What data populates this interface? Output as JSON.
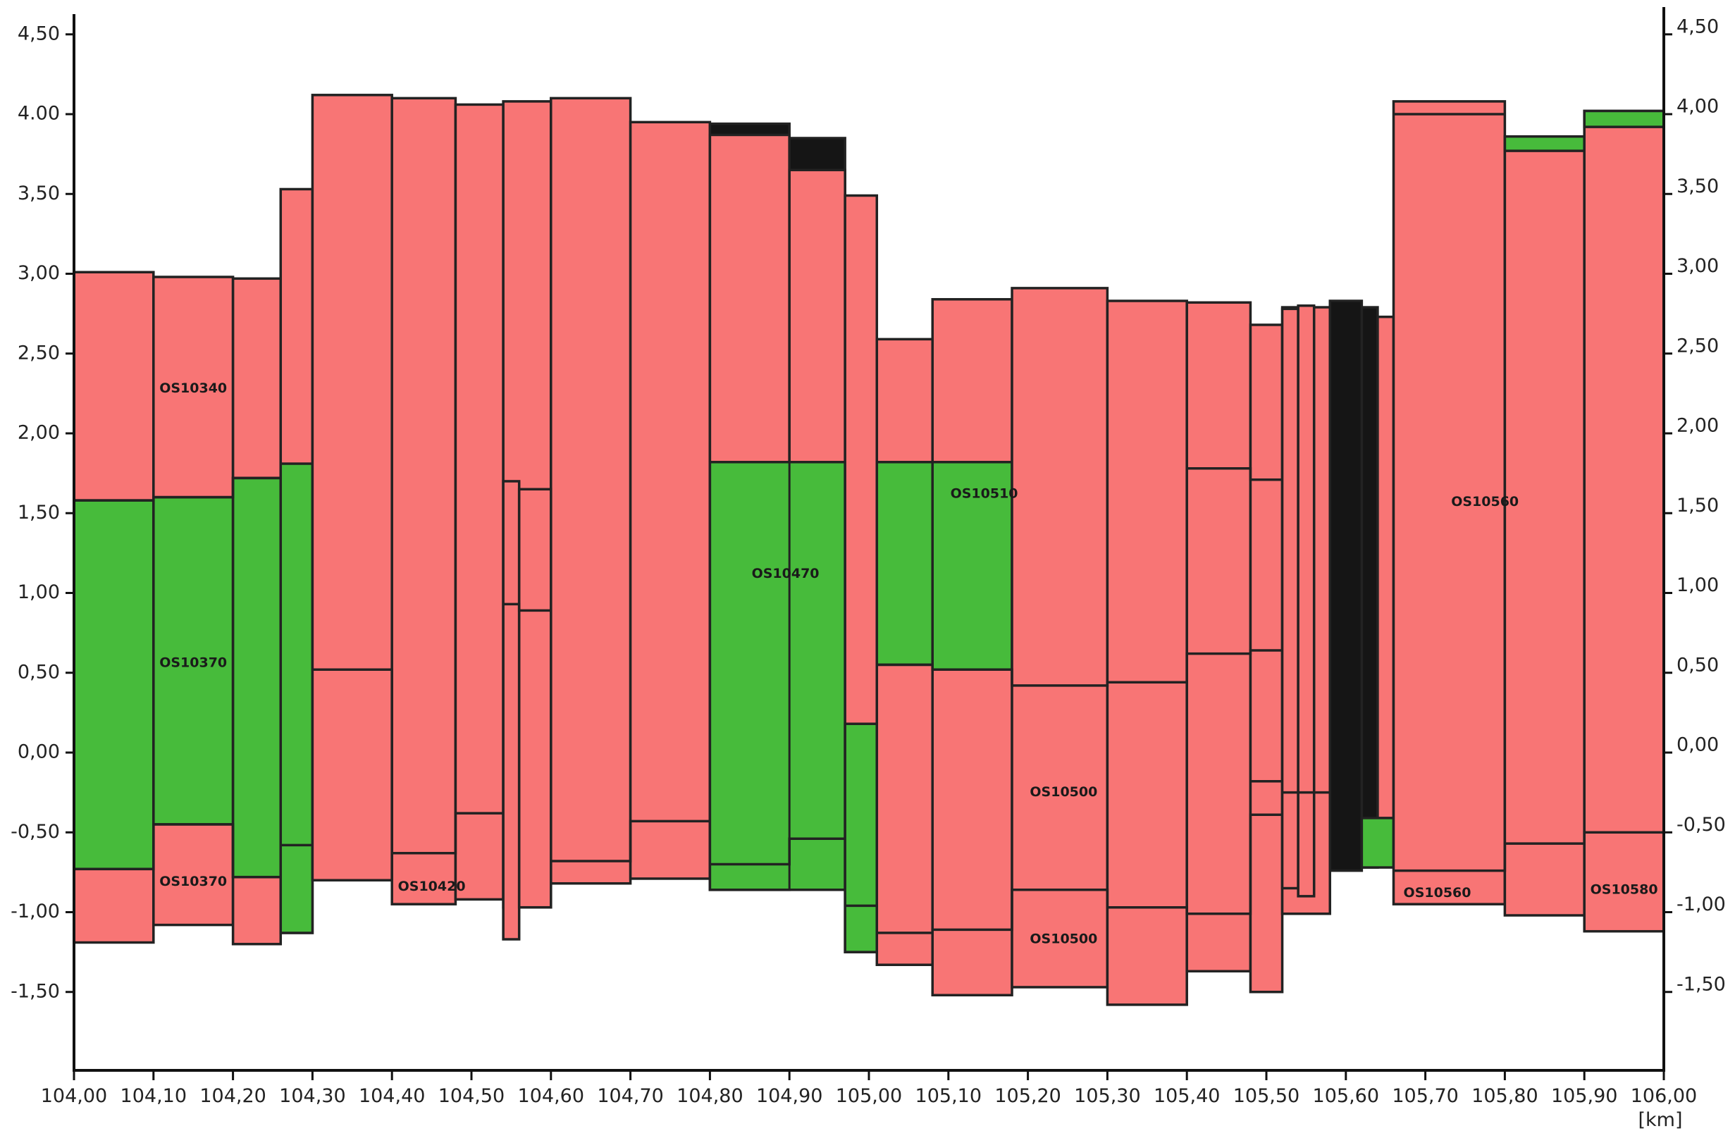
{
  "chart_data": {
    "type": "area",
    "title": "",
    "xlabel": "",
    "ylabel": "",
    "x_unit_label": "[km]",
    "xlim": [
      104.0,
      106.0
    ],
    "ylim": [
      -1.95,
      4.6
    ],
    "x_ticks": [
      104.0,
      104.1,
      104.2,
      104.3,
      104.4,
      104.5,
      104.6,
      104.7,
      104.8,
      104.9,
      105.0,
      105.1,
      105.2,
      105.3,
      105.4,
      105.5,
      105.6,
      105.7,
      105.8,
      105.9,
      106.0
    ],
    "x_tick_labels": [
      "104,00",
      "104,10",
      "104,20",
      "104,30",
      "104,40",
      "104,50",
      "104,60",
      "104,70",
      "104,80",
      "104,90",
      "105,00",
      "105,10",
      "105,20",
      "105,30",
      "105,40",
      "105,50",
      "105,60",
      "105,70",
      "105,80",
      "105,90",
      "106,00"
    ],
    "y_ticks": [
      4.5,
      4.0,
      3.5,
      3.0,
      2.5,
      2.0,
      1.5,
      1.0,
      0.5,
      0.0,
      -0.5,
      -1.0,
      -1.5
    ],
    "y_tick_labels_left": [
      "4,50",
      "4.00",
      "3,50",
      "3,00",
      "2,50",
      "2,00",
      "1,50",
      "1,00",
      "0,50",
      "0,00",
      "-0,50",
      "-1,00",
      "-1,50"
    ],
    "y_tick_labels_right": [
      "4,50",
      "4,00",
      "3,50",
      "3,00",
      "2,50",
      "2,00",
      "1,50",
      "1,00",
      "0,50",
      "0,00",
      "-0,50",
      "-1,00",
      "-1,50"
    ],
    "grid": false,
    "colors": {
      "red": "#f87575",
      "green": "#47bb3b",
      "black": "#151515",
      "outline": "#222222"
    },
    "segments": [
      {
        "x": [
          104.0,
          104.1
        ],
        "bottom": -1.19,
        "top": 3.01,
        "fill": "red"
      },
      {
        "x": [
          104.1,
          104.2
        ],
        "bottom": -1.08,
        "top": 2.98,
        "fill": "red"
      },
      {
        "x": [
          104.2,
          104.26
        ],
        "bottom": -1.2,
        "top": 2.97,
        "fill": "red"
      },
      {
        "x": [
          104.0,
          104.1
        ],
        "bottom": -0.73,
        "top": 1.58,
        "fill": "green"
      },
      {
        "x": [
          104.1,
          104.2
        ],
        "bottom": -0.45,
        "top": 1.6,
        "fill": "green"
      },
      {
        "x": [
          104.2,
          104.26
        ],
        "bottom": -0.78,
        "top": 1.72,
        "fill": "green"
      },
      {
        "x": [
          104.26,
          104.3
        ],
        "bottom": -1.13,
        "top": 3.53,
        "fill": "red"
      },
      {
        "x": [
          104.26,
          104.3
        ],
        "bottom": -1.13,
        "top": 1.81,
        "fill": "green"
      },
      {
        "x": [
          104.3,
          104.4
        ],
        "bottom": -0.8,
        "top": 4.12,
        "fill": "red"
      },
      {
        "x": [
          104.4,
          104.48
        ],
        "bottom": -0.95,
        "top": 4.1,
        "fill": "red"
      },
      {
        "x": [
          104.48,
          104.54
        ],
        "bottom": -0.92,
        "top": 4.06,
        "fill": "red"
      },
      {
        "x": [
          104.54,
          104.6
        ],
        "bottom": -0.97,
        "top": 4.08,
        "fill": "red"
      },
      {
        "x": [
          104.6,
          104.7
        ],
        "bottom": -0.82,
        "top": 4.1,
        "fill": "red"
      },
      {
        "x": [
          104.7,
          104.8
        ],
        "bottom": -0.79,
        "top": 3.95,
        "fill": "red"
      },
      {
        "x": [
          104.8,
          104.9
        ],
        "bottom": -0.86,
        "top": 3.94,
        "fill": "black"
      },
      {
        "x": [
          104.8,
          104.9
        ],
        "bottom": -0.86,
        "top": 3.87,
        "fill": "red"
      },
      {
        "x": [
          104.9,
          104.97
        ],
        "bottom": -0.79,
        "top": 3.85,
        "fill": "black"
      },
      {
        "x": [
          104.9,
          104.97
        ],
        "bottom": -0.79,
        "top": 3.65,
        "fill": "red"
      },
      {
        "x": [
          104.8,
          104.97
        ],
        "bottom": -0.86,
        "top": 1.82,
        "fill": "green"
      },
      {
        "x": [
          104.97,
          105.01
        ],
        "bottom": -1.25,
        "top": 3.49,
        "fill": "red"
      },
      {
        "x": [
          104.97,
          105.01
        ],
        "bottom": -1.25,
        "top": 0.18,
        "fill": "green"
      },
      {
        "x": [
          105.01,
          105.08
        ],
        "bottom": -1.33,
        "top": 2.59,
        "fill": "red"
      },
      {
        "x": [
          105.01,
          105.08
        ],
        "bottom": 0.55,
        "top": 1.82,
        "fill": "green"
      },
      {
        "x": [
          105.08,
          105.18
        ],
        "bottom": -1.52,
        "top": 2.84,
        "fill": "red"
      },
      {
        "x": [
          105.08,
          105.18
        ],
        "bottom": 0.52,
        "top": 1.82,
        "fill": "green"
      },
      {
        "x": [
          105.18,
          105.3
        ],
        "bottom": -1.47,
        "top": 2.91,
        "fill": "red"
      },
      {
        "x": [
          105.3,
          105.4
        ],
        "bottom": -1.58,
        "top": 2.83,
        "fill": "red"
      },
      {
        "x": [
          105.4,
          105.48
        ],
        "bottom": -1.37,
        "top": 2.82,
        "fill": "red"
      },
      {
        "x": [
          105.48,
          105.52
        ],
        "bottom": -1.5,
        "top": 2.68,
        "fill": "red"
      },
      {
        "x": [
          105.52,
          105.58
        ],
        "bottom": -1.01,
        "top": 2.79,
        "fill": "red"
      },
      {
        "x": [
          105.58,
          105.62
        ],
        "bottom": -0.74,
        "top": 2.83,
        "fill": "black"
      },
      {
        "x": [
          105.62,
          105.64
        ],
        "bottom": -0.72,
        "top": 2.79,
        "fill": "black"
      },
      {
        "x": [
          105.64,
          105.66
        ],
        "bottom": -0.7,
        "top": 2.73,
        "fill": "red"
      },
      {
        "x": [
          105.62,
          105.66
        ],
        "bottom": -0.72,
        "top": -0.41,
        "fill": "green"
      },
      {
        "x": [
          105.66,
          105.8
        ],
        "bottom": -0.95,
        "top": 4.08,
        "fill": "red"
      },
      {
        "x": [
          105.8,
          105.9
        ],
        "bottom": -1.02,
        "top": 3.86,
        "fill": "red"
      },
      {
        "x": [
          105.8,
          105.9
        ],
        "bottom": 3.77,
        "top": 3.86,
        "fill": "green"
      },
      {
        "x": [
          105.9,
          106.0
        ],
        "bottom": -1.12,
        "top": 4.02,
        "fill": "red"
      },
      {
        "x": [
          105.9,
          106.0
        ],
        "bottom": 3.92,
        "top": 4.02,
        "fill": "green"
      }
    ],
    "outline_steps": [
      [
        [
          104.0,
          1.58
        ],
        [
          104.1,
          1.58
        ],
        [
          104.1,
          1.6
        ],
        [
          104.2,
          1.6
        ],
        [
          104.2,
          1.72
        ],
        [
          104.26,
          1.72
        ]
      ],
      [
        [
          104.0,
          -0.73
        ],
        [
          104.1,
          -0.73
        ],
        [
          104.1,
          -0.45
        ],
        [
          104.2,
          -0.45
        ],
        [
          104.2,
          -0.78
        ],
        [
          104.26,
          -0.78
        ]
      ],
      [
        [
          104.26,
          -0.58
        ],
        [
          104.3,
          -0.58
        ]
      ],
      [
        [
          104.3,
          0.52
        ],
        [
          104.4,
          0.52
        ],
        [
          104.4,
          -0.8
        ]
      ],
      [
        [
          104.4,
          -0.63
        ],
        [
          104.48,
          -0.63
        ],
        [
          104.48,
          -0.38
        ],
        [
          104.54,
          -0.38
        ]
      ],
      [
        [
          104.6,
          -0.68
        ],
        [
          104.7,
          -0.68
        ],
        [
          104.7,
          -0.43
        ],
        [
          104.8,
          -0.43
        ]
      ],
      [
        [
          104.8,
          -0.7
        ],
        [
          104.9,
          -0.7
        ],
        [
          104.9,
          -0.54
        ],
        [
          104.97,
          -0.54
        ]
      ],
      [
        [
          104.97,
          -0.96
        ],
        [
          105.01,
          -0.96
        ]
      ],
      [
        [
          105.01,
          0.55
        ],
        [
          105.08,
          0.55
        ],
        [
          105.08,
          0.52
        ],
        [
          105.18,
          0.52
        ],
        [
          105.18,
          0.42
        ],
        [
          105.3,
          0.42
        ],
        [
          105.3,
          0.44
        ],
        [
          105.4,
          0.44
        ],
        [
          105.4,
          0.62
        ],
        [
          105.48,
          0.62
        ],
        [
          105.48,
          0.64
        ],
        [
          105.52,
          0.64
        ]
      ],
      [
        [
          105.4,
          1.78
        ],
        [
          105.48,
          1.78
        ],
        [
          105.48,
          1.71
        ],
        [
          105.52,
          1.71
        ]
      ],
      [
        [
          105.48,
          -0.18
        ],
        [
          105.52,
          -0.18
        ]
      ],
      [
        [
          105.01,
          -1.13
        ],
        [
          105.08,
          -1.13
        ],
        [
          105.08,
          -1.11
        ],
        [
          105.18,
          -1.11
        ],
        [
          105.18,
          -0.86
        ],
        [
          105.3,
          -0.86
        ],
        [
          105.3,
          -0.97
        ],
        [
          105.4,
          -0.97
        ],
        [
          105.4,
          -1.01
        ],
        [
          105.48,
          -1.01
        ],
        [
          105.48,
          -0.39
        ],
        [
          105.52,
          -0.39
        ]
      ],
      [
        [
          105.52,
          -0.25
        ],
        [
          105.58,
          -0.25
        ]
      ],
      [
        [
          105.66,
          -0.74
        ],
        [
          105.8,
          -0.74
        ],
        [
          105.8,
          -0.57
        ],
        [
          105.9,
          -0.57
        ],
        [
          105.9,
          -0.5
        ],
        [
          106.0,
          -0.5
        ]
      ],
      [
        [
          105.66,
          4.0
        ],
        [
          105.8,
          4.0
        ]
      ]
    ],
    "dividers": [
      104.1,
      104.2,
      104.54,
      104.56,
      104.9,
      105.4,
      105.54,
      105.56,
      105.7,
      105.8,
      105.9
    ],
    "thin_bars": [
      {
        "x": [
          104.54,
          104.56
        ],
        "bottom": -1.17,
        "top": 1.7
      },
      {
        "x": [
          104.56,
          104.6
        ],
        "bottom": -0.97,
        "top": 1.65
      },
      {
        "x": [
          105.52,
          105.54
        ],
        "bottom": -0.85,
        "top": 2.78
      },
      {
        "x": [
          105.54,
          105.56
        ],
        "bottom": -0.9,
        "top": 2.8
      }
    ],
    "thin_bar_steps": [
      [
        [
          104.54,
          0.93
        ],
        [
          104.56,
          0.93
        ],
        [
          104.56,
          0.89
        ],
        [
          104.6,
          0.89
        ]
      ]
    ],
    "annotations": [
      {
        "text": "OS10340",
        "x": 104.15,
        "y": 2.28
      },
      {
        "text": "OS10370",
        "x": 104.15,
        "y": 0.56
      },
      {
        "text": "OS10370",
        "x": 104.15,
        "y": -0.81
      },
      {
        "text": "OS10420",
        "x": 104.45,
        "y": -0.84
      },
      {
        "text": "OS10470",
        "x": 104.895,
        "y": 1.12
      },
      {
        "text": "OS10510",
        "x": 105.145,
        "y": 1.62
      },
      {
        "text": "OS10500",
        "x": 105.245,
        "y": -0.25
      },
      {
        "text": "OS10500",
        "x": 105.245,
        "y": -1.17
      },
      {
        "text": "OS10560",
        "x": 105.775,
        "y": 1.57
      },
      {
        "text": "OS10560",
        "x": 105.715,
        "y": -0.88
      },
      {
        "text": "OS10580",
        "x": 105.95,
        "y": -0.86
      }
    ]
  }
}
